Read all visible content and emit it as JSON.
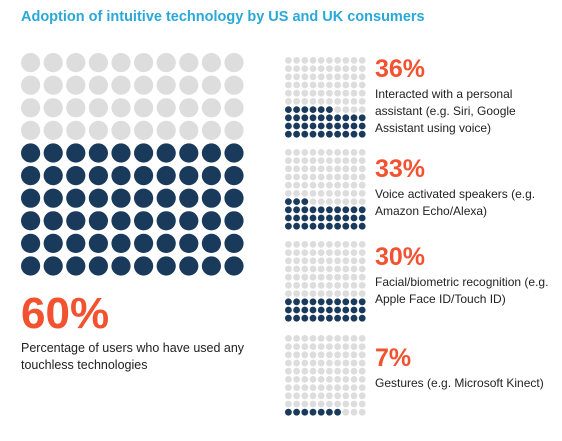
{
  "title": "Adoption of intuitive technology by US and UK consumers",
  "colors": {
    "filled": "#1a3a5c",
    "empty": "#dddddd",
    "accent": "#f2522f",
    "title": "#2aa8d8"
  },
  "chart_data": [
    {
      "type": "waffle",
      "value": 60,
      "label": "60%",
      "description": "Percentage of users who have used any touchless technologies",
      "grid": {
        "rows": 10,
        "cols": 10
      }
    },
    {
      "type": "waffle",
      "items": [
        {
          "value": 36,
          "label": "36%",
          "description": "Interacted with a personal assistant (e.g. Siri, Google Assistant using voice)"
        },
        {
          "value": 33,
          "label": "33%",
          "description": "Voice activated speakers (e.g. Amazon Echo/Alexa)"
        },
        {
          "value": 30,
          "label": "30%",
          "description": "Facial/biometric recognition (e.g. Apple Face ID/Touch ID)"
        },
        {
          "value": 7,
          "label": "7%",
          "description": "Gestures (e.g. Microsoft Kinect)"
        }
      ],
      "grid": {
        "rows": 10,
        "cols": 10
      }
    }
  ]
}
